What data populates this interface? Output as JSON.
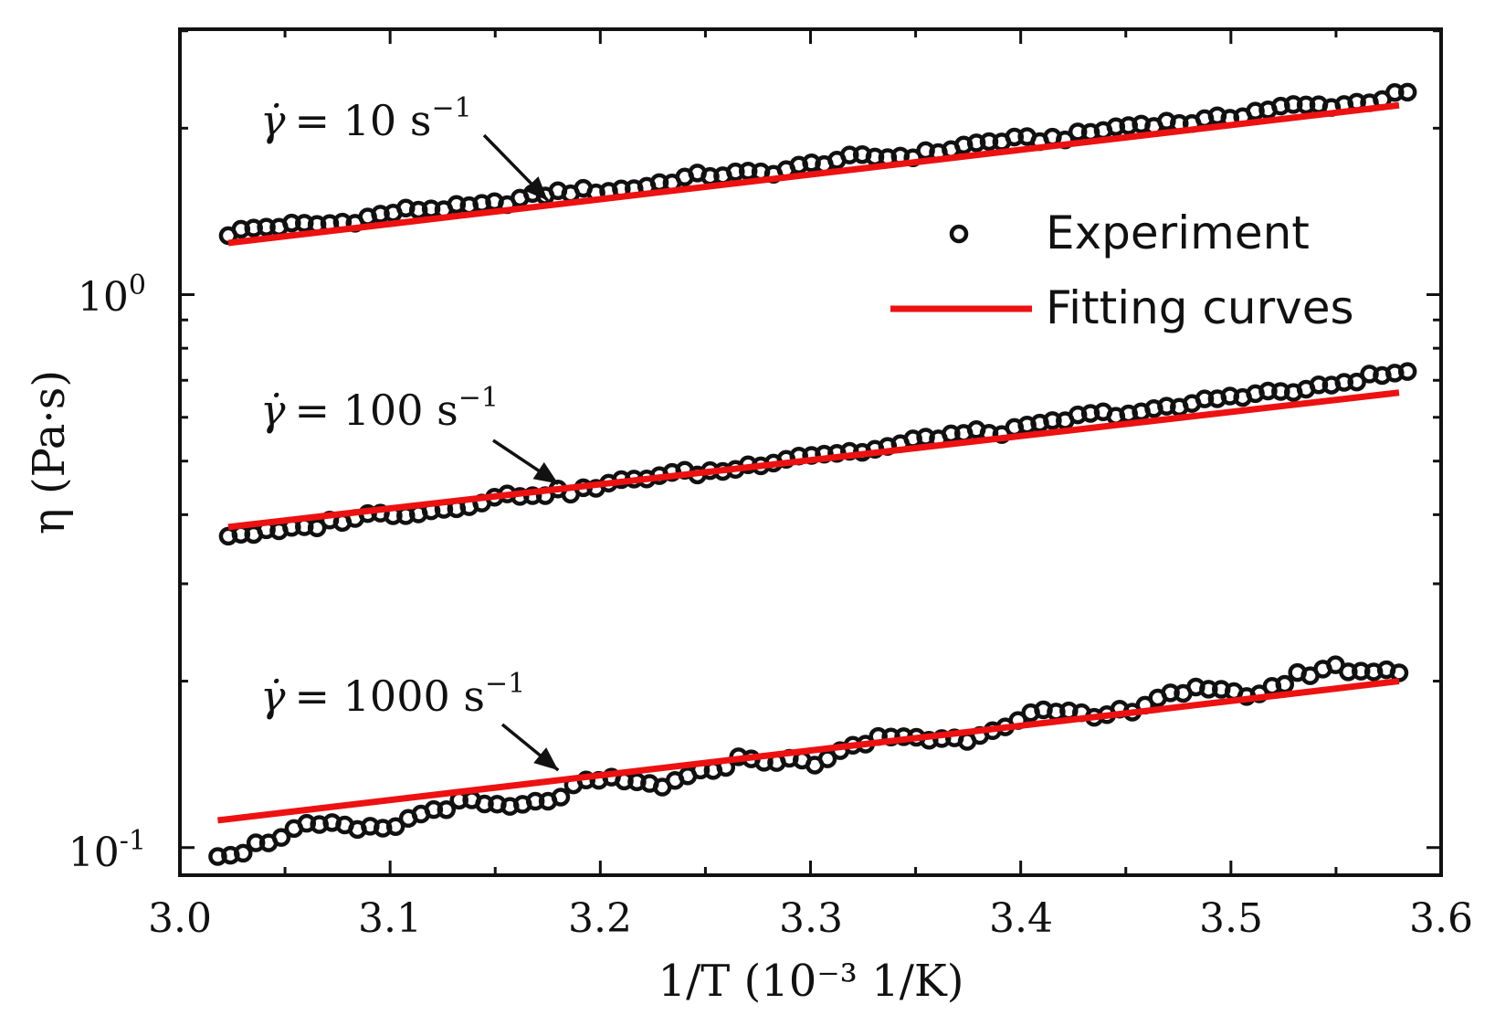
{
  "chart_data": {
    "type": "scatter",
    "title": "",
    "xlabel": "1/T (10⁻³ 1/K)",
    "ylabel": "η (Pa·s)",
    "xlim": [
      3.0,
      3.6
    ],
    "ylim_log10": [
      -1.05,
      0.48
    ],
    "yscale": "log",
    "x_ticks": [
      "3.0",
      "3.1",
      "3.2",
      "3.3",
      "3.4",
      "3.5",
      "3.6"
    ],
    "y_ticks": [
      {
        "base": "10",
        "exp": "-1",
        "value": 0.1
      },
      {
        "base": "10",
        "exp": "0",
        "value": 1
      }
    ],
    "legend": {
      "position": "upper-right",
      "entries": [
        {
          "label": "Experiment",
          "marker": "open-circle"
        },
        {
          "label": "Fitting curves",
          "marker": "line"
        }
      ]
    },
    "annotations": [
      {
        "symbol": "γ̇",
        "eq": "= 10 s",
        "sup": "−1",
        "series": "10 s^-1",
        "arrow_to": [
          3.175,
          1.48
        ]
      },
      {
        "symbol": "γ̇",
        "eq": "= 100 s",
        "sup": "−1",
        "series": "100 s^-1",
        "arrow_to": [
          3.18,
          0.455
        ]
      },
      {
        "symbol": "γ̇",
        "eq": "= 1000 s",
        "sup": "−1",
        "series": "1000 s^-1",
        "arrow_to": [
          3.18,
          0.138
        ]
      }
    ],
    "series": [
      {
        "name": "10 s^-1 experiment",
        "x_start": 3.023,
        "x_end": 3.584,
        "y_start": 1.29,
        "y_end": 2.3,
        "count": 94,
        "noise": 0.006,
        "wiggle": 0.004
      },
      {
        "name": "10 s^-1 fit",
        "x": [
          3.023,
          3.58
        ],
        "y": [
          1.24,
          2.2
        ]
      },
      {
        "name": "100 s^-1 experiment",
        "x_start": 3.023,
        "x_end": 3.584,
        "y_start": 0.365,
        "y_end": 0.72,
        "count": 94,
        "noise": 0.006,
        "wiggle": 0.004
      },
      {
        "name": "100 s^-1 fit",
        "x": [
          3.023,
          3.58
        ],
        "y": [
          0.38,
          0.665
        ]
      },
      {
        "name": "1000 s^-1 experiment",
        "x_start": 3.018,
        "x_end": 3.58,
        "y_start": 0.1,
        "y_end": 0.215,
        "count": 94,
        "noise": 0.008,
        "wiggle": 0.012
      },
      {
        "name": "1000 s^-1 fit",
        "x": [
          3.018,
          3.58
        ],
        "y": [
          0.112,
          0.2
        ]
      }
    ]
  },
  "colors": {
    "fit_line": "#ee1111",
    "marker": "#111111",
    "axis": "#111111"
  }
}
